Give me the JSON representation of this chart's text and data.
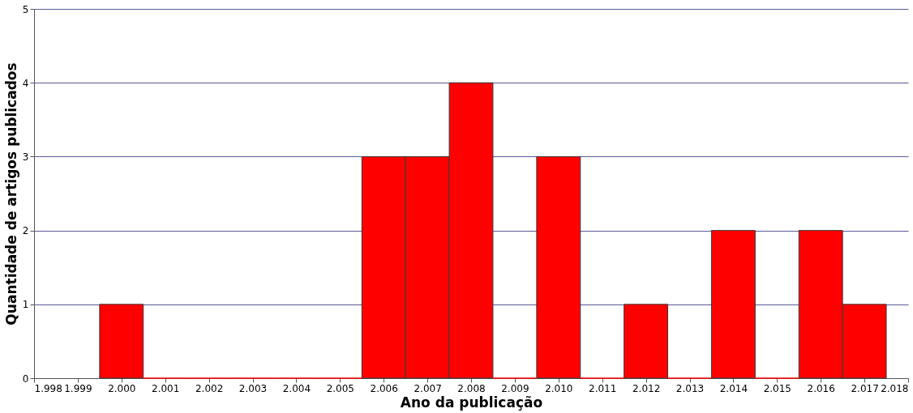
{
  "chart_data": {
    "type": "histogram",
    "xlabel": "Ano da publicação",
    "ylabel": "Quantidade de artigos publicados",
    "bins": [
      1999.5,
      2000.5,
      2001.5,
      2002.5,
      2003.5,
      2004.5,
      2005.5,
      2006.5,
      2007.5,
      2008.5,
      2009.5,
      2010.5,
      2011.5,
      2012.5,
      2013.5,
      2014.5,
      2015.5,
      2016.5,
      2017.5
    ],
    "values": [
      1,
      0,
      0,
      0,
      0,
      0,
      3,
      3,
      4,
      0,
      3,
      0,
      1,
      0,
      2,
      0,
      2,
      1
    ],
    "color": "#ff0000",
    "xlim": [
      1998,
      2018
    ],
    "xticks": [
      {
        "value": 1998,
        "label": "1.998"
      },
      {
        "value": 1999,
        "label": "1.999"
      },
      {
        "value": 2000,
        "label": "2.000"
      },
      {
        "value": 2001,
        "label": "2.001"
      },
      {
        "value": 2002,
        "label": "2.002"
      },
      {
        "value": 2003,
        "label": "2.003"
      },
      {
        "value": 2004,
        "label": "2.004"
      },
      {
        "value": 2005,
        "label": "2.005"
      },
      {
        "value": 2006,
        "label": "2.006"
      },
      {
        "value": 2007,
        "label": "2.007"
      },
      {
        "value": 2008,
        "label": "2.008"
      },
      {
        "value": 2009,
        "label": "2.009"
      },
      {
        "value": 2010,
        "label": "2.010"
      },
      {
        "value": 2011,
        "label": "2.011"
      },
      {
        "value": 2012,
        "label": "2.012"
      },
      {
        "value": 2013,
        "label": "2.013"
      },
      {
        "value": 2014,
        "label": "2.014"
      },
      {
        "value": 2015,
        "label": "2.015"
      },
      {
        "value": 2016,
        "label": "2.016"
      },
      {
        "value": 2017,
        "label": "2.017"
      },
      {
        "value": 2018,
        "label": "2.018"
      }
    ],
    "ylim": [
      0,
      5
    ],
    "yticks": [
      0,
      1,
      2,
      3,
      4,
      5
    ],
    "grid": "y"
  }
}
